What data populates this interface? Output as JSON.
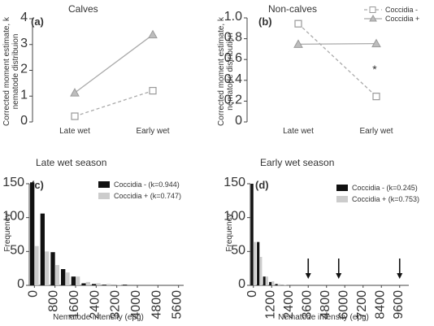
{
  "chart_data": [
    {
      "id": "a",
      "type": "line",
      "panel_label": "(a)",
      "title": "Calves",
      "ylabel_line1": "Corrected moment estimate, k",
      "ylabel_line2": "nematode distribuion",
      "categories": [
        "Late wet",
        "Early wet"
      ],
      "ylim": [
        0,
        4
      ],
      "yticks": [
        "0",
        "1",
        "2",
        "3",
        "4"
      ],
      "series": [
        {
          "name": "Coccidia -",
          "values": [
            0.22,
            1.21
          ],
          "marker": "square",
          "dashed": true
        },
        {
          "name": "Coccidia +",
          "values": [
            1.13,
            3.38
          ],
          "marker": "triangle",
          "dashed": false
        }
      ]
    },
    {
      "id": "b",
      "type": "line",
      "panel_label": "(b)",
      "title": "Non-calves",
      "ylabel_line1": "Corrected moment estimate, k",
      "ylabel_line2": "nematode distribution",
      "categories": [
        "Late wet",
        "Early wet"
      ],
      "ylim": [
        0,
        1.0
      ],
      "yticks": [
        "0",
        "0.2",
        "0.4",
        "0.6",
        "0.8",
        "1.0"
      ],
      "annotation": "*",
      "legend_position": "top-right",
      "series": [
        {
          "name": "Coccidia -",
          "values": [
            0.944,
            0.245
          ],
          "marker": "square",
          "dashed": true
        },
        {
          "name": "Coccidia +",
          "values": [
            0.747,
            0.753
          ],
          "marker": "triangle",
          "dashed": false
        }
      ]
    },
    {
      "id": "c",
      "type": "bar",
      "panel_label": "(c)",
      "title": "Late wet season",
      "xlabel": "Nematode intensity (epg)",
      "ylabel": "Frequency",
      "ylim": [
        0,
        150
      ],
      "yticks": [
        "0",
        "50",
        "100",
        "150"
      ],
      "bin_width": 400,
      "xtick_labels": [
        "0",
        "800",
        "1600",
        "2400",
        "3200",
        "4000",
        "4800",
        "5600"
      ],
      "xmax": 6000,
      "legend_position": "top-right",
      "series": [
        {
          "name": "Coccidia - (k=0.944)",
          "color": "#111111",
          "values": [
            152,
            106,
            49,
            24,
            13,
            3,
            2,
            1,
            0,
            1,
            0,
            0,
            0,
            0,
            0
          ]
        },
        {
          "name": "Coccidia + (k=0.747)",
          "color": "#cccccc",
          "values": [
            58,
            50,
            30,
            19,
            13,
            5,
            3,
            2,
            1,
            0,
            0,
            0,
            0,
            0,
            0
          ]
        }
      ]
    },
    {
      "id": "d",
      "type": "bar",
      "panel_label": "(d)",
      "title": "Early wet season",
      "xlabel": "Nematode intensity (epg)",
      "ylabel": "Frequency",
      "ylim": [
        0,
        150
      ],
      "yticks": [
        "0",
        "50",
        "100",
        "150"
      ],
      "bin_width": 400,
      "xtick_labels": [
        "0",
        "1200",
        "2400",
        "3600",
        "4800",
        "6000",
        "7200",
        "8400",
        "9600"
      ],
      "xtick_step": 1200,
      "xmax": 10400,
      "legend_position": "top-right",
      "arrows_at": [
        3800,
        5800,
        9800
      ],
      "series": [
        {
          "name": "Coccidia - (k=0.245)",
          "color": "#111111",
          "values": [
            150,
            64,
            13,
            5,
            2,
            0,
            0,
            0,
            0,
            0,
            0,
            0,
            0,
            0,
            0,
            0,
            0,
            0,
            0,
            0,
            0,
            0,
            0,
            0,
            0,
            0
          ]
        },
        {
          "name": "Coccidia + (k=0.753)",
          "color": "#cccccc",
          "values": [
            64,
            42,
            13,
            6,
            2,
            1,
            0,
            0,
            0,
            0,
            0,
            0,
            0,
            0,
            0,
            0,
            0,
            0,
            0,
            0,
            0,
            0,
            0,
            0,
            0,
            0
          ]
        }
      ]
    }
  ]
}
